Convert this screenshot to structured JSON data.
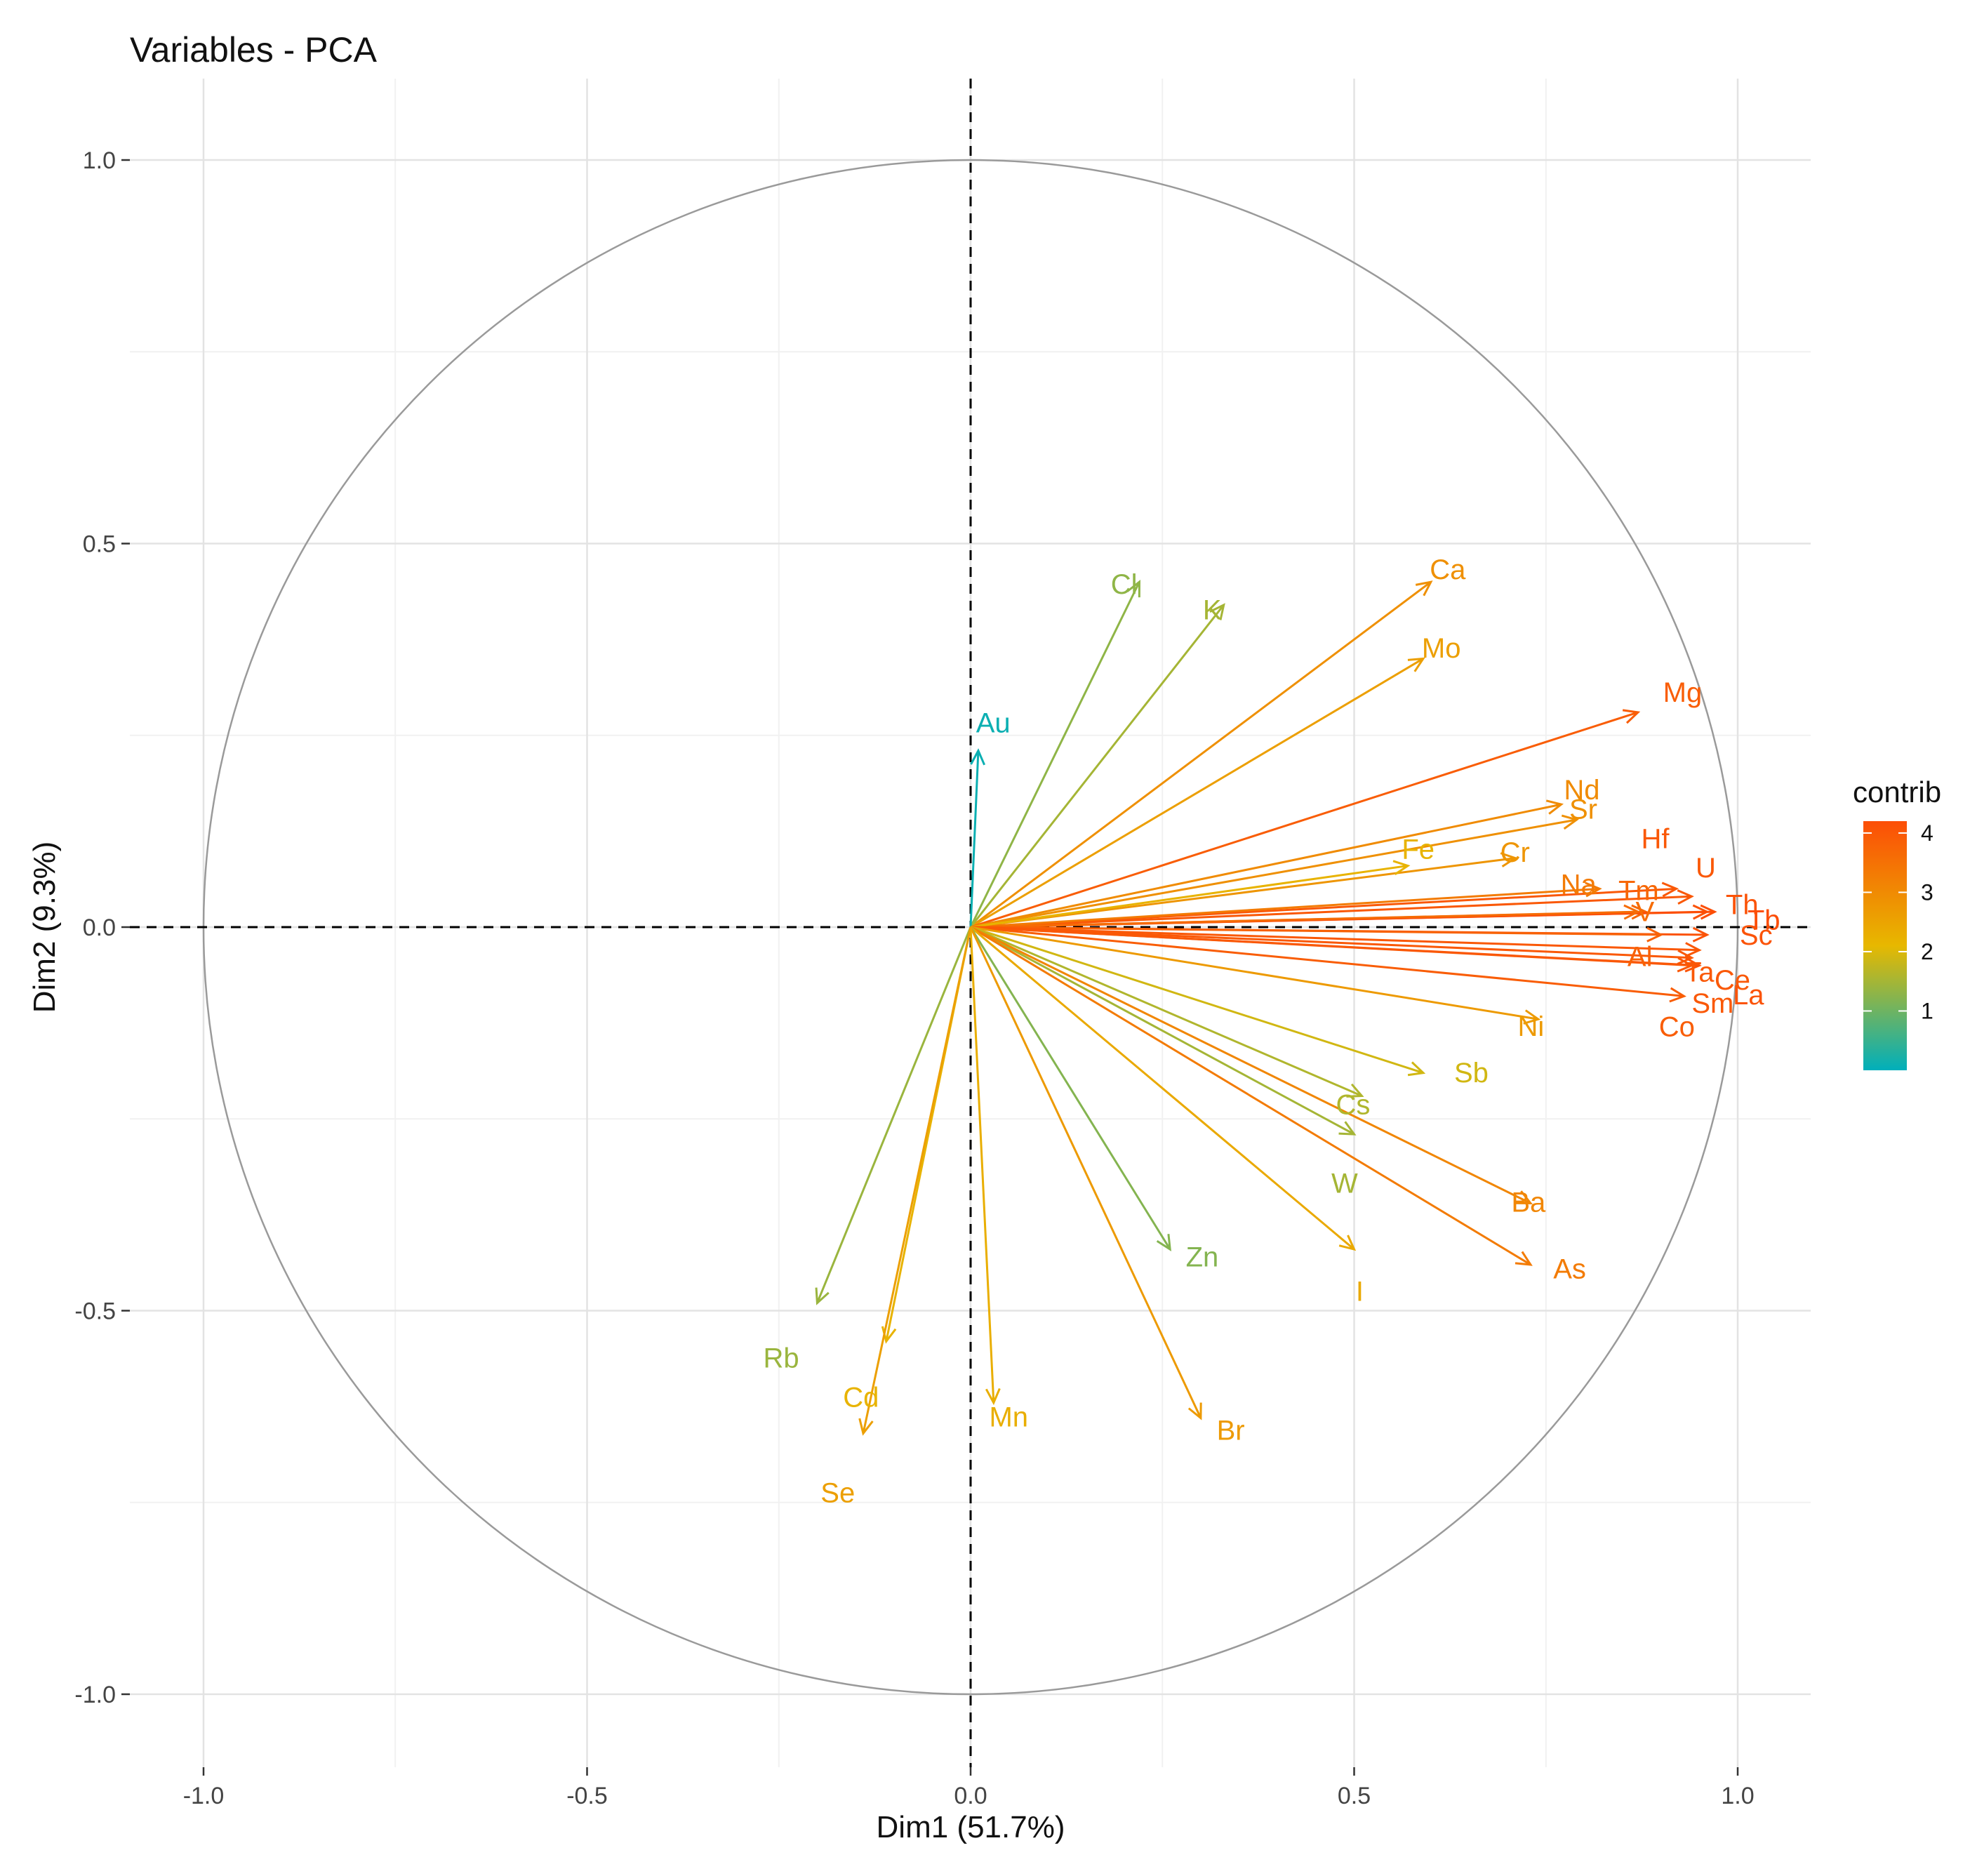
{
  "chart_data": {
    "type": "pca-variables",
    "title": "Variables - PCA",
    "xlabel": "Dim1 (51.7%)",
    "ylabel": "Dim2 (9.3%)",
    "xlim": [
      -1.1,
      1.1
    ],
    "ylim": [
      -1.1,
      1.1
    ],
    "x_ticks": [
      -1.0,
      -0.5,
      0.0,
      0.5,
      1.0
    ],
    "x_tick_labels": [
      "-1.0",
      "-0.5",
      "0.0",
      "0.5",
      "1.0"
    ],
    "y_ticks": [
      1.0,
      0.5,
      0.0,
      -0.5,
      -1.0
    ],
    "y_tick_labels": [
      "1.0",
      "0.5",
      "0.0",
      "-0.5",
      "-1.0"
    ],
    "grid": true,
    "unit_circle": true,
    "legend": {
      "title": "contrib",
      "position": "right",
      "ticks": [
        1,
        2,
        3,
        4
      ],
      "tick_labels": [
        "1",
        "2",
        "3",
        "4"
      ],
      "range": [
        0,
        4.2
      ],
      "colors": [
        "#00AFBB",
        "#E7B800",
        "#FC4E07"
      ]
    },
    "variables": [
      {
        "name": "Ca",
        "x": 0.6,
        "y": 0.45,
        "contrib": 2.9
      },
      {
        "name": "Mo",
        "x": 0.59,
        "y": 0.35,
        "contrib": 2.6
      },
      {
        "name": "Cl",
        "x": 0.22,
        "y": 0.45,
        "contrib": 1.3
      },
      {
        "name": "K",
        "x": 0.33,
        "y": 0.42,
        "contrib": 1.5
      },
      {
        "name": "Au",
        "x": 0.01,
        "y": 0.23,
        "contrib": 0.1
      },
      {
        "name": "Mg",
        "x": 0.87,
        "y": 0.28,
        "contrib": 3.9
      },
      {
        "name": "Nd",
        "x": 0.77,
        "y": 0.16,
        "contrib": 3.0
      },
      {
        "name": "Hf",
        "x": 0.92,
        "y": 0.05,
        "contrib": 4.0
      },
      {
        "name": "Sr",
        "x": 0.79,
        "y": 0.14,
        "contrib": 2.9
      },
      {
        "name": "U",
        "x": 0.94,
        "y": 0.04,
        "contrib": 4.0
      },
      {
        "name": "Tm",
        "x": 0.88,
        "y": 0.02,
        "contrib": 3.7
      },
      {
        "name": "Th",
        "x": 0.96,
        "y": 0.02,
        "contrib": 4.1
      },
      {
        "name": "Tb",
        "x": 0.97,
        "y": 0.02,
        "contrib": 4.2
      },
      {
        "name": "Cr",
        "x": 0.71,
        "y": 0.09,
        "contrib": 2.8
      },
      {
        "name": "Na",
        "x": 0.82,
        "y": 0.05,
        "contrib": 3.3
      },
      {
        "name": "V",
        "x": 0.87,
        "y": 0.02,
        "contrib": 3.6
      },
      {
        "name": "Fe",
        "x": 0.57,
        "y": 0.08,
        "contrib": 2.2
      },
      {
        "name": "Sc",
        "x": 0.96,
        "y": -0.01,
        "contrib": 4.1
      },
      {
        "name": "Al",
        "x": 0.9,
        "y": -0.01,
        "contrib": 3.8
      },
      {
        "name": "Ta",
        "x": 0.95,
        "y": -0.03,
        "contrib": 4.0
      },
      {
        "name": "Ce",
        "x": 0.94,
        "y": -0.04,
        "contrib": 4.0
      },
      {
        "name": "Co",
        "x": 0.93,
        "y": -0.09,
        "contrib": 3.9
      },
      {
        "name": "La",
        "x": 0.95,
        "y": -0.05,
        "contrib": 4.1
      },
      {
        "name": "Sm",
        "x": 0.94,
        "y": -0.05,
        "contrib": 4.0
      },
      {
        "name": "Ni",
        "x": 0.74,
        "y": -0.12,
        "contrib": 2.7
      },
      {
        "name": "Sb",
        "x": 0.59,
        "y": -0.19,
        "contrib": 1.9
      },
      {
        "name": "Cs",
        "x": 0.51,
        "y": -0.22,
        "contrib": 1.6
      },
      {
        "name": "W",
        "x": 0.5,
        "y": -0.27,
        "contrib": 1.5
      },
      {
        "name": "Ba",
        "x": 0.73,
        "y": -0.36,
        "contrib": 3.1
      },
      {
        "name": "As",
        "x": 0.73,
        "y": -0.44,
        "contrib": 3.3
      },
      {
        "name": "I",
        "x": 0.5,
        "y": -0.42,
        "contrib": 2.4
      },
      {
        "name": "Zn",
        "x": 0.26,
        "y": -0.42,
        "contrib": 1.2
      },
      {
        "name": "Br",
        "x": 0.3,
        "y": -0.64,
        "contrib": 2.7
      },
      {
        "name": "Mn",
        "x": 0.03,
        "y": -0.62,
        "contrib": 2.3
      },
      {
        "name": "Rb",
        "x": -0.2,
        "y": -0.49,
        "contrib": 1.4
      },
      {
        "name": "Cd",
        "x": -0.11,
        "y": -0.54,
        "contrib": 2.2
      },
      {
        "name": "Se",
        "x": -0.14,
        "y": -0.66,
        "contrib": 2.6
      }
    ]
  }
}
